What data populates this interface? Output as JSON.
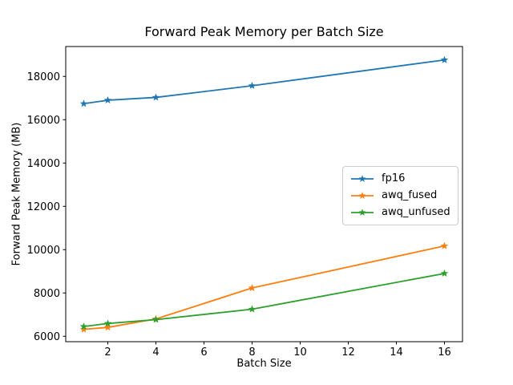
{
  "chart_data": {
    "type": "line",
    "title": "Forward Peak Memory per Batch Size",
    "xlabel": "Batch Size",
    "ylabel": "Forward Peak Memory (MB)",
    "x": [
      1,
      2,
      4,
      8,
      16
    ],
    "series": [
      {
        "name": "fp16",
        "color": "#1f77b4",
        "values": [
          16740,
          16900,
          17030,
          17570,
          18760
        ]
      },
      {
        "name": "awq_fused",
        "color": "#ff7f0e",
        "values": [
          6320,
          6410,
          6800,
          8230,
          10170
        ]
      },
      {
        "name": "awq_unfused",
        "color": "#2ca02c",
        "values": [
          6450,
          6590,
          6770,
          7250,
          8900
        ]
      }
    ],
    "xticks": [
      2,
      4,
      6,
      8,
      10,
      12,
      14,
      16
    ],
    "yticks": [
      6000,
      8000,
      10000,
      12000,
      14000,
      16000,
      18000
    ],
    "xlim": [
      0.25,
      16.75
    ],
    "ylim": [
      5750,
      19380
    ],
    "marker": "star",
    "grid": false,
    "legend_position": "center-right",
    "background": "#ffffff",
    "axis_color": "#000000",
    "text_color": "#000000"
  }
}
